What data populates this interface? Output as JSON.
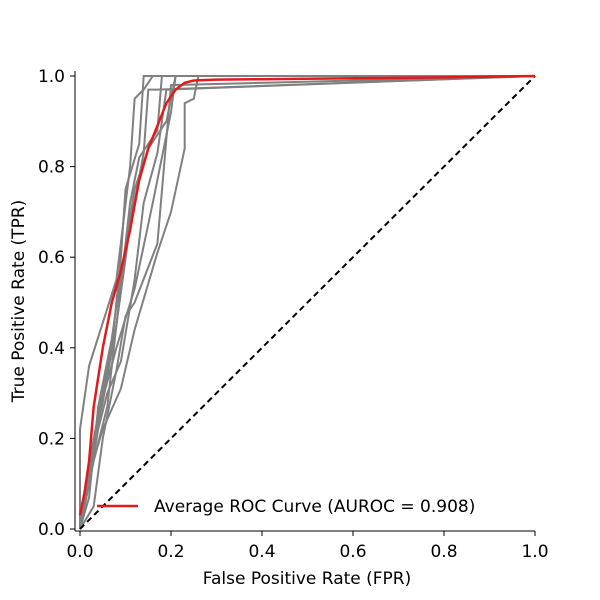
{
  "chart_data": {
    "type": "line",
    "title": "",
    "xlabel": "False Positive Rate (FPR)",
    "ylabel": "True Positive Rate (TPR)",
    "xlim": [
      0,
      1
    ],
    "ylim": [
      0,
      1
    ],
    "xticks": [
      "0.0",
      "0.2",
      "0.4",
      "0.6",
      "0.8",
      "1.0"
    ],
    "yticks": [
      "0.0",
      "0.2",
      "0.4",
      "0.6",
      "0.8",
      "1.0"
    ],
    "grid": false,
    "legend_position": "lower-right",
    "colors": {
      "fold_curves": "#808080",
      "average_curve": "#e31a1c",
      "chance_line": "#000000"
    },
    "fold_series": [
      {
        "x": [
          0,
          0,
          0.02,
          0.08,
          0.11,
          0.12,
          0.14,
          0.16,
          1.0
        ],
        "y": [
          0,
          0.22,
          0.36,
          0.55,
          0.8,
          0.95,
          0.97,
          1.0,
          1.0
        ]
      },
      {
        "x": [
          0,
          0.02,
          0.05,
          0.08,
          0.11,
          0.14,
          0.15,
          0.17,
          1.0
        ],
        "y": [
          0,
          0.15,
          0.28,
          0.45,
          0.67,
          0.83,
          0.97,
          0.97,
          1.0
        ]
      },
      {
        "x": [
          0,
          0.03,
          0.07,
          0.09,
          0.1,
          0.13,
          0.14,
          1.0
        ],
        "y": [
          0,
          0.2,
          0.4,
          0.6,
          0.75,
          0.85,
          1.0,
          1.0
        ]
      },
      {
        "x": [
          0,
          0.03,
          0.04,
          0.06,
          0.08,
          0.11,
          0.13,
          0.17,
          0.18,
          1.0
        ],
        "y": [
          0,
          0.15,
          0.19,
          0.27,
          0.45,
          0.72,
          0.82,
          0.88,
          1.0,
          1.0
        ]
      },
      {
        "x": [
          0,
          0.02,
          0.04,
          0.07,
          0.09,
          0.12,
          0.15,
          0.19,
          0.21,
          1.0
        ],
        "y": [
          0,
          0.07,
          0.27,
          0.42,
          0.56,
          0.75,
          0.84,
          0.9,
          1.0,
          1.0
        ]
      },
      {
        "x": [
          0,
          0.04,
          0.08,
          0.12,
          0.16,
          0.2,
          0.21,
          1.0
        ],
        "y": [
          0,
          0.25,
          0.4,
          0.53,
          0.72,
          0.92,
          1.0,
          1.0
        ]
      },
      {
        "x": [
          0,
          0.02,
          0.04,
          0.06,
          0.09,
          0.12,
          0.14,
          0.17,
          0.19,
          1.0
        ],
        "y": [
          0,
          0.1,
          0.22,
          0.3,
          0.37,
          0.55,
          0.72,
          0.83,
          0.97,
          1.0
        ]
      },
      {
        "x": [
          0,
          0.03,
          0.05,
          0.08,
          0.1,
          0.12,
          0.17,
          0.2,
          1.0
        ],
        "y": [
          0,
          0.05,
          0.2,
          0.35,
          0.47,
          0.5,
          0.63,
          0.98,
          1.0
        ]
      },
      {
        "x": [
          0,
          0.02,
          0.05,
          0.09,
          0.12,
          0.17,
          0.2,
          0.23,
          0.23,
          0.25,
          0.26,
          1.0
        ],
        "y": [
          0,
          0.12,
          0.22,
          0.31,
          0.44,
          0.61,
          0.7,
          0.84,
          0.94,
          0.95,
          1.0,
          1.0
        ]
      }
    ],
    "average_curve": {
      "name": "Average ROC Curve (AUROC = 0.908)",
      "x": [
        0,
        0.01,
        0.02,
        0.03,
        0.05,
        0.07,
        0.09,
        0.11,
        0.13,
        0.15,
        0.17,
        0.19,
        0.21,
        0.23,
        0.25,
        0.3,
        0.4,
        0.6,
        0.8,
        1.0
      ],
      "y": [
        0.03,
        0.08,
        0.15,
        0.27,
        0.4,
        0.5,
        0.57,
        0.66,
        0.77,
        0.84,
        0.89,
        0.94,
        0.97,
        0.985,
        0.99,
        0.992,
        0.993,
        0.995,
        0.997,
        1.0
      ]
    },
    "chance_line": {
      "x": [
        0,
        1
      ],
      "y": [
        0,
        1
      ]
    }
  }
}
